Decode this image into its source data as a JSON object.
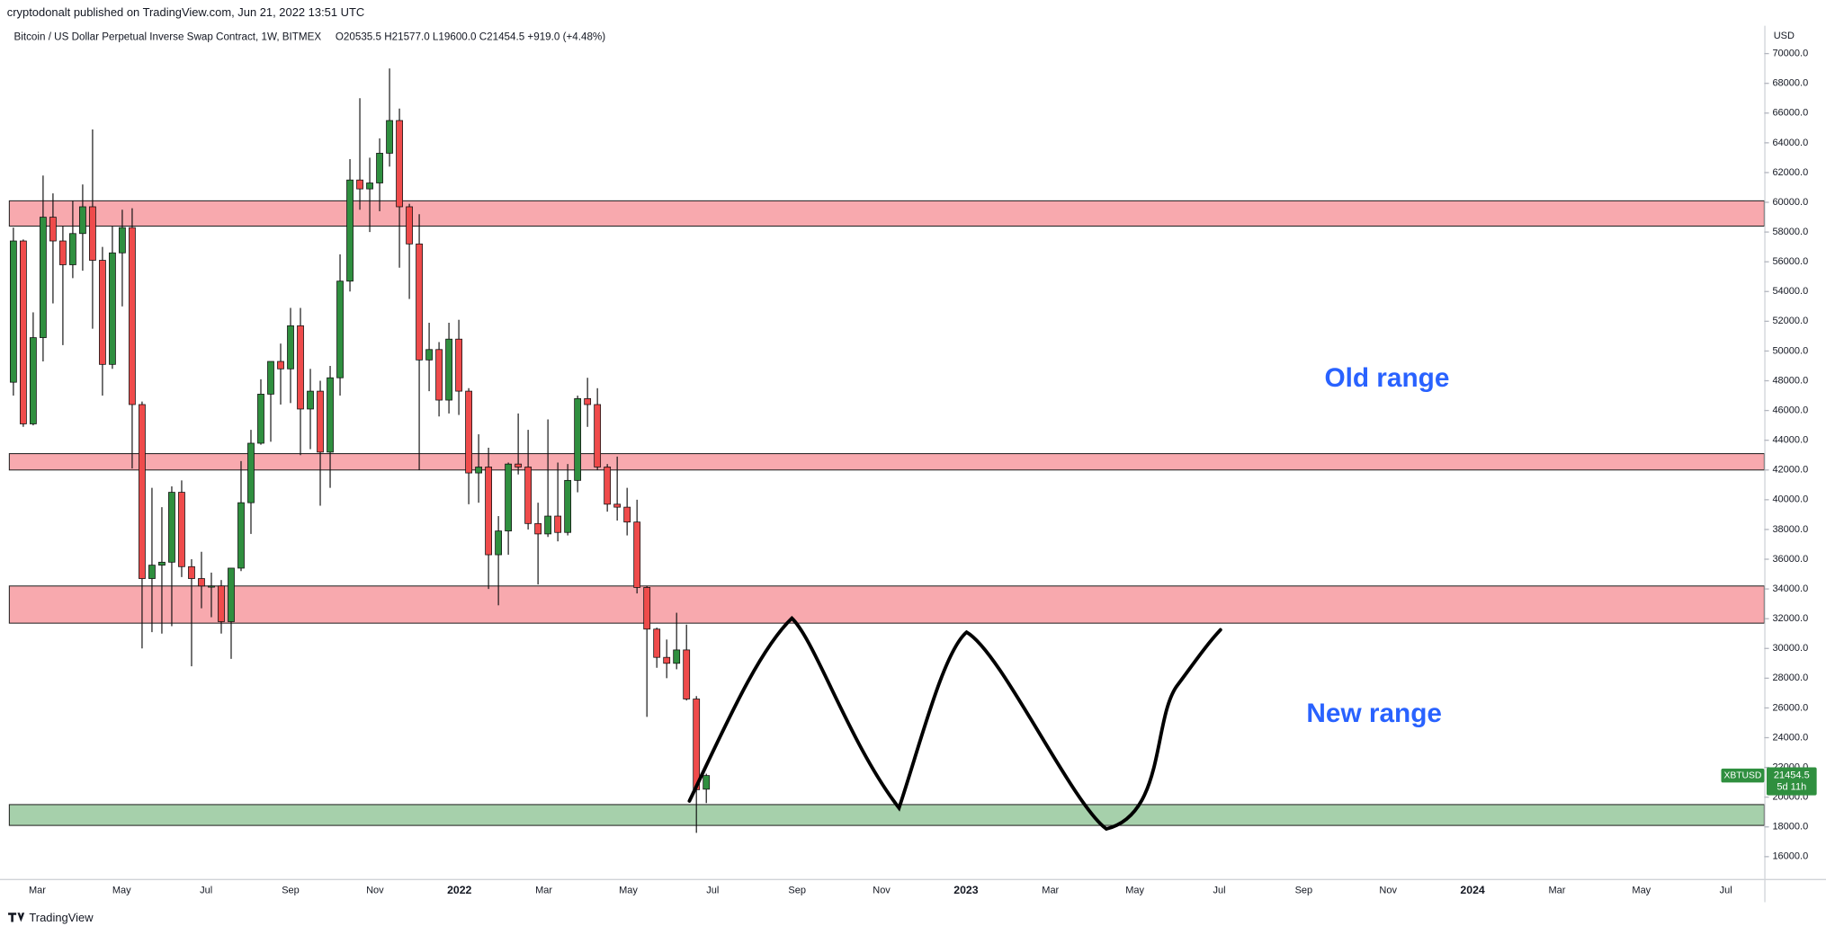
{
  "chart_data": {
    "type": "candlestick",
    "header": "cryptodonalt published on TradingView.com, Jun 21, 2022 13:51 UTC",
    "title": "Bitcoin / US Dollar Perpetual Inverse Swap Contract, 1W, BITMEX",
    "ohlc_label": "O20535.5  H21577.0  L19600.0  C21454.5  +919.0 (+4.48%)",
    "axis_unit": "USD",
    "symbol": "XBTUSD",
    "last_price": 21454.5,
    "countdown": "5d 11h",
    "brand": "TradingView",
    "annotations": [
      "Old range",
      "New range"
    ],
    "up_color": "#2f8f3f",
    "down_color": "#ef4b4b",
    "open": [
      47900,
      57400,
      45100,
      50900,
      59000,
      57400,
      55800,
      57900,
      59700,
      56100,
      49100,
      56600,
      58300,
      46400,
      34700,
      35600,
      35800,
      40500,
      35500,
      34700,
      34200,
      34200,
      31800,
      35400,
      39800,
      43800,
      47100,
      49300,
      48800,
      51700,
      46100,
      47300,
      43200,
      48200,
      54700,
      61500,
      60900,
      61300,
      63300,
      65500,
      59700,
      57200,
      49400,
      50100,
      46700,
      50800,
      47300,
      41800,
      42200,
      36300,
      37900,
      42400,
      42200,
      38400,
      37700,
      38900,
      37800,
      41300,
      46800,
      46400,
      42200,
      39700,
      39500,
      38500,
      34100,
      31300,
      29400,
      29000,
      29900,
      26600,
      20535.5
    ],
    "high": [
      58300,
      57500,
      52600,
      61800,
      60600,
      58400,
      60100,
      61200,
      64900,
      57000,
      58400,
      59500,
      59600,
      46600,
      40800,
      39500,
      40900,
      41300,
      36000,
      36500,
      35100,
      34600,
      35400,
      42600,
      44700,
      48100,
      49300,
      50500,
      52900,
      52900,
      48800,
      48000,
      49000,
      56500,
      62900,
      67000,
      63000,
      64300,
      69000,
      66300,
      59900,
      59200,
      51900,
      50600,
      51900,
      52100,
      47500,
      44400,
      43500,
      38900,
      42500,
      45800,
      44700,
      39800,
      45400,
      42500,
      42400,
      47000,
      48200,
      47500,
      42400,
      42900,
      40800,
      40000,
      34200,
      31400,
      30600,
      32400,
      31600,
      26800,
      21577
    ],
    "low": [
      47000,
      44900,
      45000,
      49300,
      53200,
      50400,
      54900,
      55400,
      51500,
      47000,
      48800,
      53000,
      42100,
      30000,
      31100,
      31000,
      31500,
      34800,
      28800,
      32700,
      32100,
      31000,
      29300,
      35200,
      37700,
      43700,
      43900,
      46400,
      46500,
      43000,
      43400,
      39600,
      40800,
      47000,
      54000,
      59500,
      58000,
      59400,
      62400,
      55600,
      53500,
      42000,
      47300,
      45600,
      45800,
      45700,
      39700,
      39800,
      34000,
      32900,
      36300,
      41700,
      38000,
      34300,
      37500,
      37200,
      37600,
      40500,
      44900,
      42000,
      39200,
      38600,
      37600,
      33700,
      25400,
      28700,
      28000,
      28600,
      26500,
      17600,
      19600
    ],
    "close": [
      57400,
      45100,
      50900,
      59000,
      57400,
      55800,
      57900,
      59700,
      56100,
      49100,
      56600,
      58300,
      46400,
      34700,
      35600,
      35800,
      40500,
      35500,
      34700,
      34200,
      34200,
      31800,
      35400,
      39800,
      43800,
      47100,
      49300,
      48800,
      51700,
      46100,
      47300,
      43200,
      48200,
      54700,
      61500,
      60900,
      61300,
      63300,
      65500,
      59700,
      57200,
      49400,
      50100,
      46700,
      50800,
      47300,
      41800,
      42200,
      36300,
      37900,
      42400,
      42200,
      38400,
      37700,
      38900,
      37800,
      41300,
      46800,
      46400,
      42200,
      39700,
      39500,
      38500,
      34100,
      31300,
      29400,
      29000,
      29900,
      26600,
      20500,
      21454.5
    ],
    "zones": [
      {
        "low": 58400,
        "high": 60100,
        "color": "#f8a9ae"
      },
      {
        "low": 42000,
        "high": 43100,
        "color": "#f8a9ae"
      },
      {
        "low": 31700,
        "high": 34200,
        "color": "#f8a9ae"
      },
      {
        "low": 18100,
        "high": 19500,
        "color": "#a6d0ab"
      }
    ],
    "xticks": [
      "Mar",
      "May",
      "Jul",
      "Sep",
      "Nov",
      "2022",
      "Mar",
      "May",
      "Jul",
      "Sep",
      "Nov",
      "2023",
      "Mar",
      "May",
      "Jul",
      "Sep",
      "Nov",
      "2024",
      "Mar",
      "May",
      "Jul"
    ],
    "ylim": [
      14500,
      71400
    ],
    "yticks": [
      {
        "value": 16000,
        "label": "16000.0"
      },
      {
        "value": 18000,
        "label": "18000.0"
      },
      {
        "value": 20000,
        "label": "20000.0"
      },
      {
        "value": 22000,
        "label": "22000.0"
      },
      {
        "value": 24000,
        "label": "24000.0"
      },
      {
        "value": 26000,
        "label": "26000.0"
      },
      {
        "value": 28000,
        "label": "28000.0"
      },
      {
        "value": 30000,
        "label": "30000.0"
      },
      {
        "value": 32000,
        "label": "32000.0"
      },
      {
        "value": 34000,
        "label": "34000.0"
      },
      {
        "value": 36000,
        "label": "36000.0"
      },
      {
        "value": 38000,
        "label": "38000.0"
      },
      {
        "value": 40000,
        "label": "40000.0"
      },
      {
        "value": 42000,
        "label": "42000.0"
      },
      {
        "value": 44000,
        "label": "44000.0"
      },
      {
        "value": 46000,
        "label": "46000.0"
      },
      {
        "value": 48000,
        "label": "48000.0"
      },
      {
        "value": 50000,
        "label": "50000.0"
      },
      {
        "value": 52000,
        "label": "52000.0"
      },
      {
        "value": 54000,
        "label": "54000.0"
      },
      {
        "value": 56000,
        "label": "56000.0"
      },
      {
        "value": 58000,
        "label": "58000.0"
      },
      {
        "value": 60000,
        "label": "60000.0"
      },
      {
        "value": 62000,
        "label": "62000.0"
      },
      {
        "value": 64000,
        "label": "64000.0"
      },
      {
        "value": 66000,
        "label": "66000.0"
      },
      {
        "value": 68000,
        "label": "68000.0"
      },
      {
        "value": 70000,
        "label": "70000.0"
      }
    ]
  }
}
